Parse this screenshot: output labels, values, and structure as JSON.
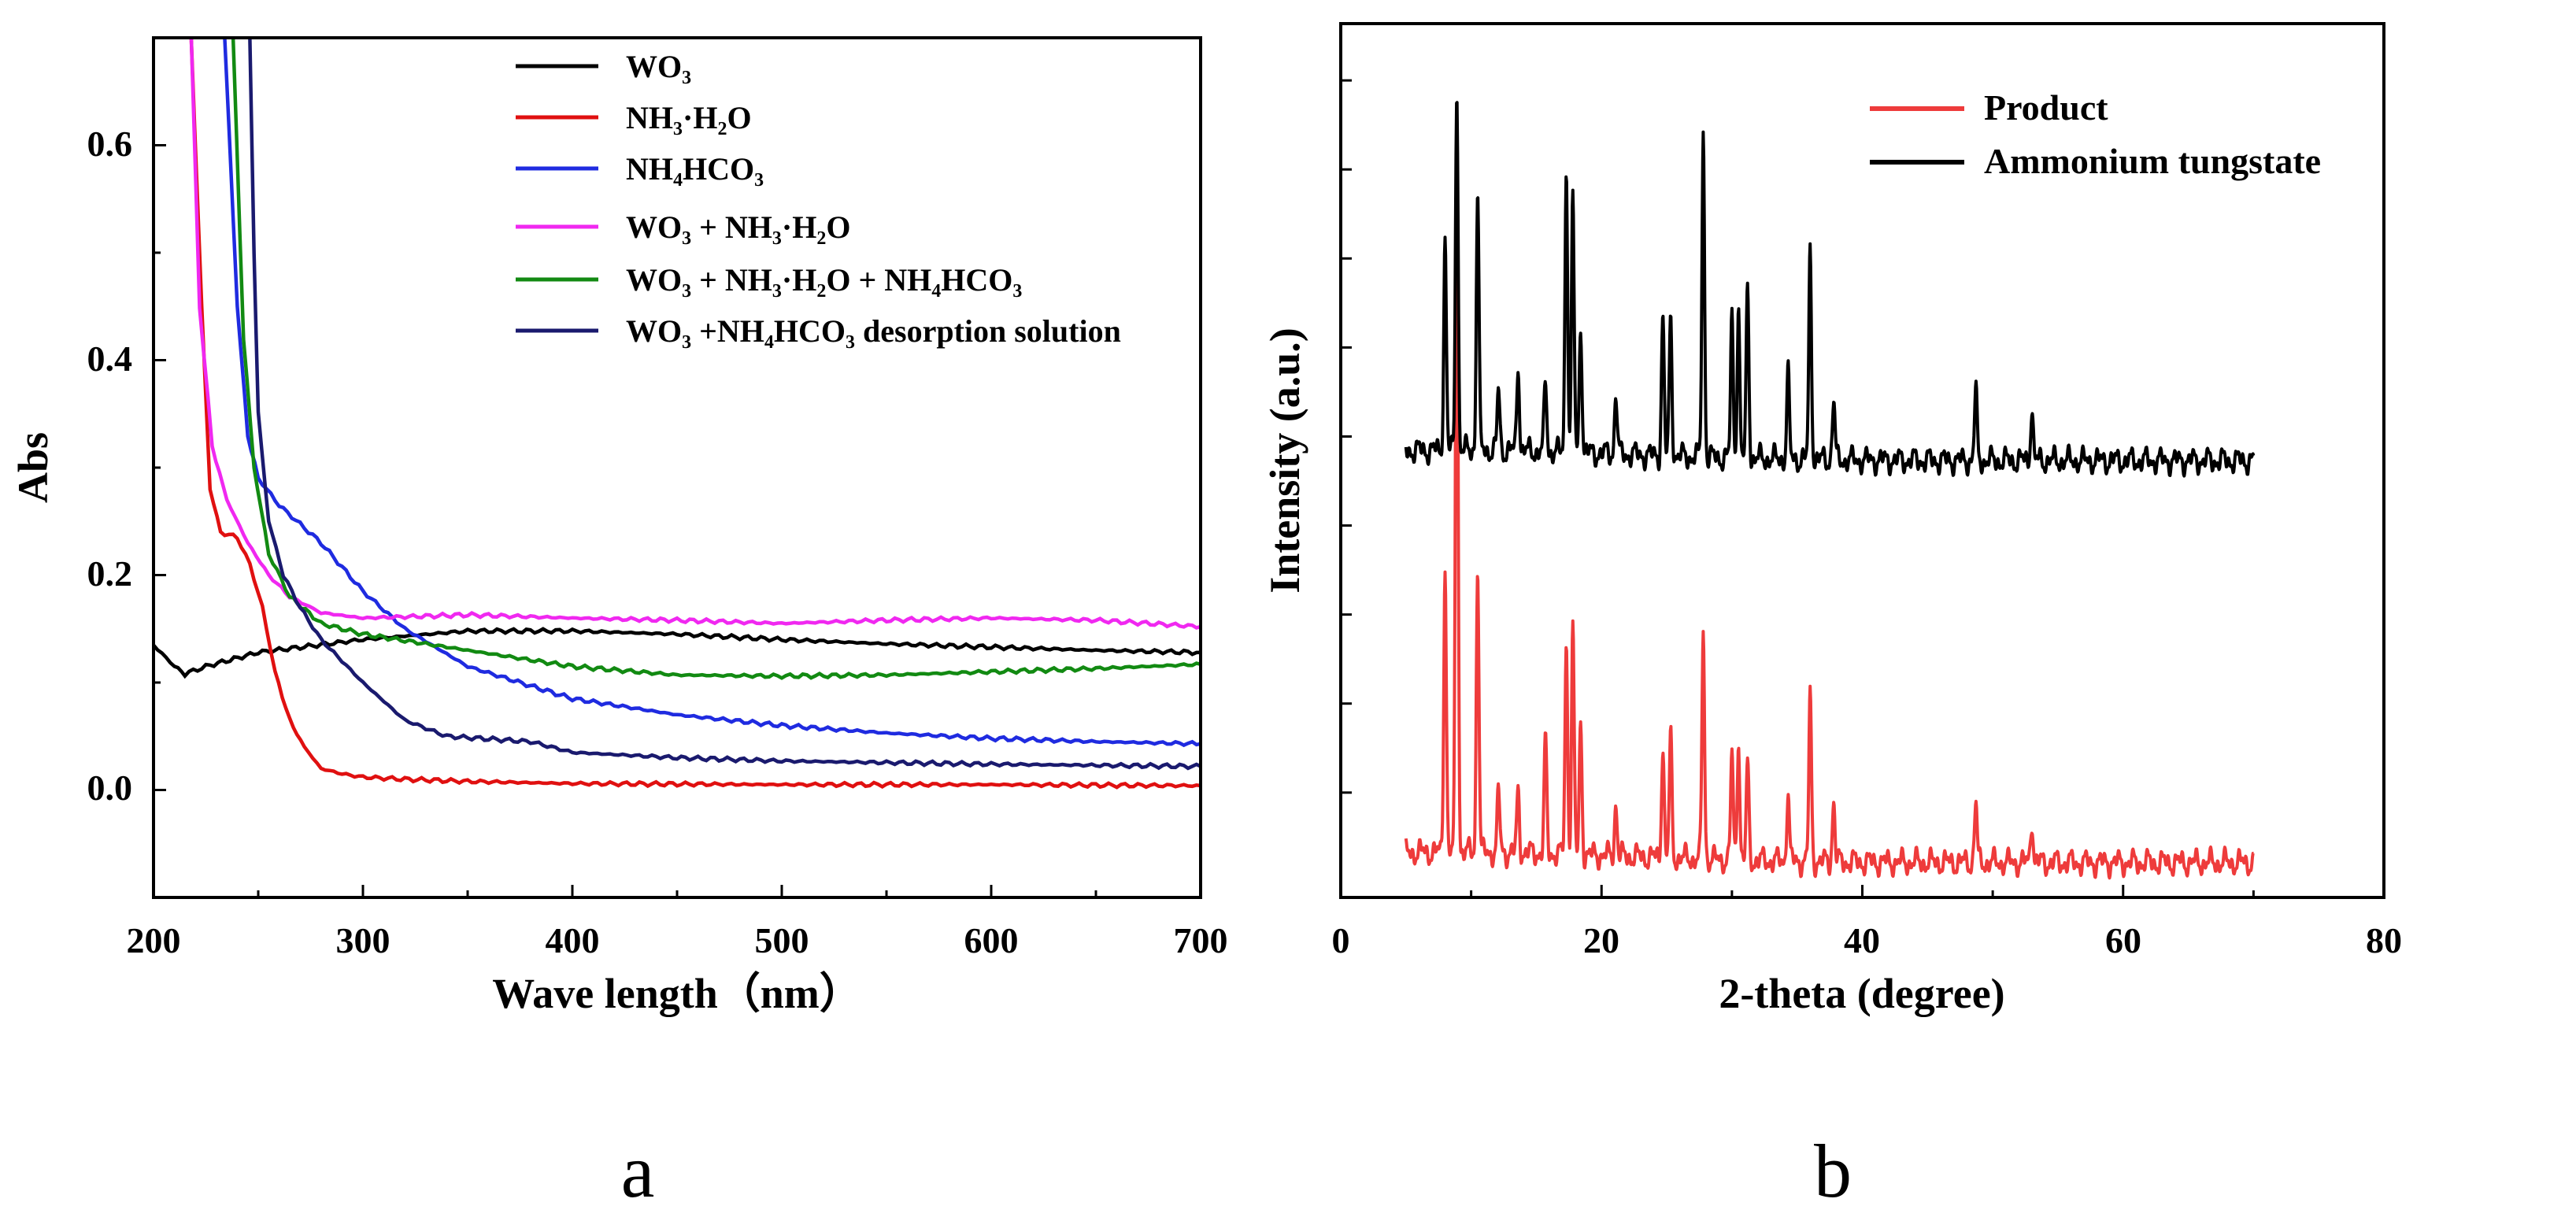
{
  "chart_data": [
    {
      "id": "a",
      "type": "line",
      "panel_label": "a",
      "xlabel": "Wave length（nm）",
      "ylabel": "Abs",
      "xlim": [
        200,
        700
      ],
      "ylim": [
        -0.1,
        0.7
      ],
      "x_ticks": [
        "200",
        "300",
        "400",
        "500",
        "600",
        "700"
      ],
      "y_ticks": [
        "0.0",
        "0.2",
        "0.4",
        "0.6"
      ],
      "legend_position": "top-right",
      "series": [
        {
          "name": "WO3",
          "legend_label": "WO₃",
          "color": "#000000",
          "x": [
            200,
            210,
            215,
            225,
            250,
            300,
            350,
            400,
            450,
            500,
            550,
            600,
            650,
            700
          ],
          "y": [
            0.135,
            0.115,
            0.108,
            0.115,
            0.128,
            0.14,
            0.148,
            0.148,
            0.145,
            0.14,
            0.136,
            0.133,
            0.13,
            0.128
          ]
        },
        {
          "name": "NH3·H2O",
          "legend_label": "NH₃·H₂O",
          "color": "#e01010",
          "x": [
            218,
            223,
            227,
            232,
            240,
            246,
            252,
            258,
            265,
            272,
            280,
            290,
            300,
            320,
            350,
            400,
            500,
            600,
            700
          ],
          "y": [
            0.7,
            0.45,
            0.28,
            0.24,
            0.235,
            0.21,
            0.17,
            0.11,
            0.065,
            0.04,
            0.02,
            0.015,
            0.012,
            0.01,
            0.008,
            0.006,
            0.005,
            0.005,
            0.004
          ]
        },
        {
          "name": "NH4HCO3",
          "legend_label": "NH₄HCO₃",
          "color": "#1f2be0",
          "x": [
            234,
            240,
            245,
            250,
            260,
            280,
            300,
            320,
            350,
            400,
            450,
            500,
            550,
            600,
            650,
            700
          ],
          "y": [
            0.7,
            0.45,
            0.33,
            0.29,
            0.265,
            0.23,
            0.185,
            0.15,
            0.115,
            0.085,
            0.07,
            0.06,
            0.053,
            0.048,
            0.045,
            0.043
          ]
        },
        {
          "name": "WO3 + NH3·H2O",
          "legend_label": "WO₃ + NH₃·H₂O",
          "color": "#f028f0",
          "x": [
            218,
            222,
            228,
            235,
            245,
            255,
            265,
            280,
            300,
            350,
            400,
            450,
            500,
            550,
            600,
            650,
            700
          ],
          "y": [
            0.7,
            0.45,
            0.32,
            0.27,
            0.23,
            0.2,
            0.18,
            0.165,
            0.16,
            0.163,
            0.16,
            0.158,
            0.155,
            0.158,
            0.16,
            0.158,
            0.152
          ]
        },
        {
          "name": "WO3 + NH3·H2O + NH4HCO3",
          "legend_label": "WO₃ + NH₃·H₂O + NH₄HCO₃",
          "color": "#128a12",
          "x": [
            238,
            243,
            248,
            255,
            265,
            280,
            300,
            350,
            400,
            450,
            500,
            550,
            600,
            650,
            700
          ],
          "y": [
            0.7,
            0.42,
            0.3,
            0.22,
            0.18,
            0.155,
            0.145,
            0.13,
            0.115,
            0.107,
            0.106,
            0.107,
            0.11,
            0.113,
            0.117
          ]
        },
        {
          "name": "WO3 + NH4HCO3 desorption solution",
          "legend_label": "WO₃ +NH₄HCO₃ desorption solution",
          "color": "#1a1a6e",
          "x": [
            246,
            248,
            250,
            255,
            262,
            270,
            280,
            300,
            320,
            340,
            380,
            400,
            450,
            500,
            600,
            700
          ],
          "y": [
            0.7,
            0.5,
            0.35,
            0.25,
            0.2,
            0.17,
            0.14,
            0.1,
            0.065,
            0.05,
            0.045,
            0.035,
            0.03,
            0.027,
            0.024,
            0.022
          ]
        }
      ]
    },
    {
      "id": "b",
      "type": "line",
      "panel_label": "b",
      "xlabel": "2-theta (degree)",
      "ylabel": "Intensity (a.u.)",
      "xlim": [
        0,
        80
      ],
      "x_ticks": [
        "0",
        "20",
        "40",
        "60",
        "80"
      ],
      "y_ticks_unlabeled": 9,
      "legend_position": "top-right",
      "series": [
        {
          "name": "Product",
          "color": "#ee3b3b",
          "baseline_fraction": 0.04,
          "peaks": [
            [
              8.0,
              0.33
            ],
            [
              8.9,
              0.8
            ],
            [
              10.5,
              0.33
            ],
            [
              12.1,
              0.07
            ],
            [
              13.6,
              0.07
            ],
            [
              15.7,
              0.13
            ],
            [
              17.3,
              0.24
            ],
            [
              17.8,
              0.26
            ],
            [
              18.4,
              0.15
            ],
            [
              21.1,
              0.06
            ],
            [
              24.7,
              0.13
            ],
            [
              25.3,
              0.14
            ],
            [
              27.8,
              0.26
            ],
            [
              30.0,
              0.12
            ],
            [
              30.5,
              0.14
            ],
            [
              31.2,
              0.11
            ],
            [
              34.3,
              0.08
            ],
            [
              36.0,
              0.19
            ],
            [
              37.8,
              0.07
            ],
            [
              48.7,
              0.07
            ],
            [
              53.0,
              0.05
            ]
          ],
          "x_range": [
            5,
            70
          ]
        },
        {
          "name": "Ammonium tungstate",
          "color": "#000000",
          "baseline_fraction": 0.5,
          "peaks": [
            [
              8.0,
              0.24
            ],
            [
              8.9,
              0.42
            ],
            [
              10.5,
              0.3
            ],
            [
              12.1,
              0.07
            ],
            [
              13.6,
              0.1
            ],
            [
              15.7,
              0.08
            ],
            [
              17.3,
              0.33
            ],
            [
              17.8,
              0.29
            ],
            [
              18.4,
              0.15
            ],
            [
              21.1,
              0.07
            ],
            [
              24.7,
              0.16
            ],
            [
              25.3,
              0.16
            ],
            [
              27.8,
              0.37
            ],
            [
              30.0,
              0.16
            ],
            [
              30.5,
              0.17
            ],
            [
              31.2,
              0.2
            ],
            [
              34.3,
              0.1
            ],
            [
              36.0,
              0.24
            ],
            [
              37.8,
              0.07
            ],
            [
              48.7,
              0.08
            ],
            [
              53.0,
              0.06
            ]
          ],
          "x_range": [
            5,
            70
          ]
        }
      ]
    }
  ]
}
